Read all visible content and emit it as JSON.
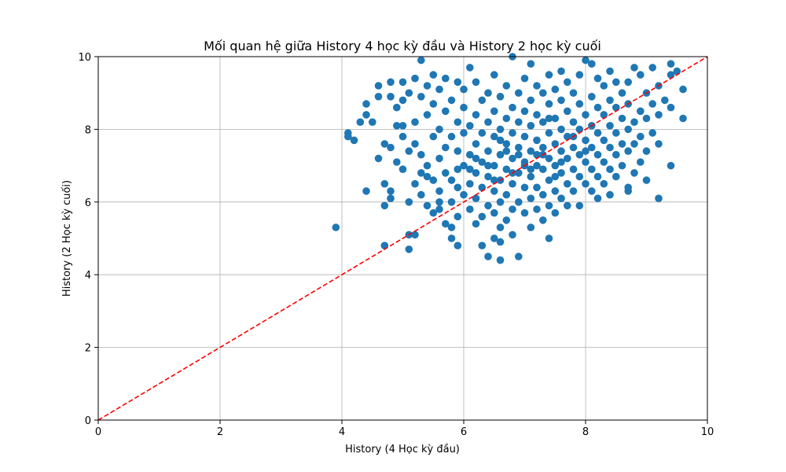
{
  "chart_data": {
    "type": "scatter",
    "title": "Mối quan hệ giữa History 4 học kỳ đầu và History 2 học kỳ cuối",
    "xlabel": "History (4 Học kỳ đầu)",
    "ylabel": "History (2 Học kỳ cuối)",
    "xlim": [
      0,
      10
    ],
    "ylim": [
      0,
      10
    ],
    "xticks": [
      0,
      2,
      4,
      6,
      8,
      10
    ],
    "yticks": [
      0,
      2,
      4,
      6,
      8,
      10
    ],
    "grid": true,
    "point_color": "#1f77b4",
    "reference_line": {
      "x": [
        0,
        10
      ],
      "y": [
        0,
        10
      ],
      "color": "#ff0000",
      "style": "dashed"
    },
    "series": [
      {
        "points": [
          [
            3.9,
            5.3
          ],
          [
            4.1,
            7.8
          ],
          [
            4.1,
            7.9
          ],
          [
            4.2,
            7.7
          ],
          [
            4.3,
            8.2
          ],
          [
            4.4,
            6.3
          ],
          [
            4.4,
            8.7
          ],
          [
            4.4,
            8.4
          ],
          [
            4.5,
            8.2
          ],
          [
            4.6,
            9.2
          ],
          [
            4.6,
            7.2
          ],
          [
            4.6,
            8.9
          ],
          [
            4.7,
            6.5
          ],
          [
            4.7,
            5.9
          ],
          [
            4.7,
            7.6
          ],
          [
            4.7,
            4.8
          ],
          [
            4.8,
            6.1
          ],
          [
            4.8,
            7.5
          ],
          [
            4.8,
            8.9
          ],
          [
            4.8,
            9.3
          ],
          [
            4.8,
            6.3
          ],
          [
            4.9,
            7.1
          ],
          [
            4.9,
            8.1
          ],
          [
            4.9,
            8.6
          ],
          [
            5.0,
            6.9
          ],
          [
            5.0,
            7.8
          ],
          [
            5.0,
            8.8
          ],
          [
            5.0,
            9.3
          ],
          [
            5.0,
            8.1
          ],
          [
            5.1,
            6.0
          ],
          [
            5.1,
            4.7
          ],
          [
            5.1,
            5.1
          ],
          [
            5.1,
            7.4
          ],
          [
            5.1,
            9.0
          ],
          [
            5.2,
            5.1
          ],
          [
            5.2,
            6.5
          ],
          [
            5.2,
            8.2
          ],
          [
            5.2,
            9.4
          ],
          [
            5.2,
            7.6
          ],
          [
            5.3,
            6.8
          ],
          [
            5.3,
            8.9
          ],
          [
            5.3,
            9.9
          ],
          [
            5.3,
            7.3
          ],
          [
            5.3,
            6.2
          ],
          [
            5.4,
            5.9
          ],
          [
            5.4,
            8.4
          ],
          [
            5.4,
            9.2
          ],
          [
            5.4,
            7.0
          ],
          [
            5.5,
            5.7
          ],
          [
            5.5,
            6.6
          ],
          [
            5.5,
            7.8
          ],
          [
            5.5,
            8.7
          ],
          [
            5.5,
            9.5
          ],
          [
            5.6,
            5.8
          ],
          [
            5.6,
            6.3
          ],
          [
            5.6,
            7.2
          ],
          [
            5.6,
            8.0
          ],
          [
            5.6,
            9.1
          ],
          [
            5.7,
            5.4
          ],
          [
            5.7,
            6.8
          ],
          [
            5.7,
            7.5
          ],
          [
            5.7,
            8.5
          ],
          [
            5.7,
            9.4
          ],
          [
            5.8,
            5.0
          ],
          [
            5.8,
            5.3
          ],
          [
            5.8,
            6.0
          ],
          [
            5.8,
            6.6
          ],
          [
            5.8,
            7.8
          ],
          [
            5.8,
            8.8
          ],
          [
            5.9,
            4.8
          ],
          [
            5.9,
            5.6
          ],
          [
            5.9,
            6.9
          ],
          [
            5.9,
            7.4
          ],
          [
            5.9,
            8.2
          ],
          [
            5.9,
            9.3
          ],
          [
            6.0,
            6.2
          ],
          [
            6.0,
            7.0
          ],
          [
            6.0,
            7.9
          ],
          [
            6.0,
            8.6
          ],
          [
            6.0,
            9.1
          ],
          [
            6.1,
            5.8
          ],
          [
            6.1,
            6.5
          ],
          [
            6.1,
            7.3
          ],
          [
            6.1,
            8.1
          ],
          [
            6.1,
            9.7
          ],
          [
            6.2,
            5.4
          ],
          [
            6.2,
            6.1
          ],
          [
            6.2,
            6.8
          ],
          [
            6.2,
            7.6
          ],
          [
            6.2,
            8.4
          ],
          [
            6.2,
            9.3
          ],
          [
            6.3,
            4.8
          ],
          [
            6.3,
            5.6
          ],
          [
            6.3,
            6.4
          ],
          [
            6.3,
            7.1
          ],
          [
            6.3,
            7.9
          ],
          [
            6.3,
            8.8
          ],
          [
            6.4,
            4.5
          ],
          [
            6.4,
            5.9
          ],
          [
            6.4,
            6.7
          ],
          [
            6.4,
            7.4
          ],
          [
            6.4,
            8.2
          ],
          [
            6.4,
            9.0
          ],
          [
            6.5,
            5.0
          ],
          [
            6.5,
            5.7
          ],
          [
            6.5,
            6.3
          ],
          [
            6.5,
            7.0
          ],
          [
            6.5,
            7.8
          ],
          [
            6.5,
            8.5
          ],
          [
            6.5,
            9.5
          ],
          [
            6.6,
            4.4
          ],
          [
            6.6,
            4.9
          ],
          [
            6.6,
            5.3
          ],
          [
            6.6,
            6.0
          ],
          [
            6.6,
            6.6
          ],
          [
            6.6,
            7.3
          ],
          [
            6.6,
            8.0
          ],
          [
            6.6,
            8.9
          ],
          [
            6.7,
            5.5
          ],
          [
            6.7,
            6.2
          ],
          [
            6.7,
            6.9
          ],
          [
            6.7,
            7.6
          ],
          [
            6.7,
            8.3
          ],
          [
            6.7,
            9.2
          ],
          [
            6.8,
            5.1
          ],
          [
            6.8,
            5.8
          ],
          [
            6.8,
            6.5
          ],
          [
            6.8,
            7.2
          ],
          [
            6.8,
            7.9
          ],
          [
            6.8,
            8.6
          ],
          [
            6.8,
            10.0
          ],
          [
            6.9,
            4.5
          ],
          [
            6.9,
            6.0
          ],
          [
            6.9,
            6.8
          ],
          [
            6.9,
            7.5
          ],
          [
            6.9,
            8.2
          ],
          [
            6.9,
            9.0
          ],
          [
            7.0,
            5.7
          ],
          [
            7.0,
            6.4
          ],
          [
            7.0,
            7.1
          ],
          [
            7.0,
            7.8
          ],
          [
            7.0,
            8.5
          ],
          [
            7.0,
            9.4
          ],
          [
            7.1,
            5.3
          ],
          [
            7.1,
            6.1
          ],
          [
            7.1,
            6.7
          ],
          [
            7.1,
            7.4
          ],
          [
            7.1,
            8.1
          ],
          [
            7.1,
            8.8
          ],
          [
            7.1,
            9.8
          ],
          [
            7.2,
            5.8
          ],
          [
            7.2,
            6.4
          ],
          [
            7.2,
            7.0
          ],
          [
            7.2,
            7.7
          ],
          [
            7.2,
            8.4
          ],
          [
            7.2,
            9.2
          ],
          [
            7.3,
            5.5
          ],
          [
            7.3,
            6.2
          ],
          [
            7.3,
            6.9
          ],
          [
            7.3,
            7.5
          ],
          [
            7.3,
            8.2
          ],
          [
            7.3,
            9.0
          ],
          [
            7.4,
            5.0
          ],
          [
            7.4,
            5.9
          ],
          [
            7.4,
            6.6
          ],
          [
            7.4,
            7.2
          ],
          [
            7.4,
            7.9
          ],
          [
            7.4,
            8.7
          ],
          [
            7.4,
            9.5
          ],
          [
            7.5,
            5.7
          ],
          [
            7.5,
            6.3
          ],
          [
            7.5,
            7.0
          ],
          [
            7.5,
            7.6
          ],
          [
            7.5,
            8.3
          ],
          [
            7.5,
            9.1
          ],
          [
            7.6,
            6.1
          ],
          [
            7.6,
            6.8
          ],
          [
            7.6,
            7.4
          ],
          [
            7.6,
            8.0
          ],
          [
            7.6,
            8.8
          ],
          [
            7.6,
            9.6
          ],
          [
            7.7,
            5.9
          ],
          [
            7.7,
            6.5
          ],
          [
            7.7,
            7.2
          ],
          [
            7.7,
            7.8
          ],
          [
            7.7,
            8.5
          ],
          [
            7.7,
            9.3
          ],
          [
            7.8,
            6.3
          ],
          [
            7.8,
            6.9
          ],
          [
            7.8,
            7.5
          ],
          [
            7.8,
            8.2
          ],
          [
            7.8,
            9.0
          ],
          [
            7.9,
            5.9
          ],
          [
            7.9,
            6.7
          ],
          [
            7.9,
            7.3
          ],
          [
            7.9,
            8.0
          ],
          [
            7.9,
            8.7
          ],
          [
            7.9,
            9.5
          ],
          [
            8.0,
            6.5
          ],
          [
            8.0,
            7.1
          ],
          [
            8.0,
            7.7
          ],
          [
            8.0,
            8.4
          ],
          [
            8.0,
            9.9
          ],
          [
            8.1,
            6.3
          ],
          [
            8.1,
            6.9
          ],
          [
            8.1,
            7.5
          ],
          [
            8.1,
            8.1
          ],
          [
            8.1,
            8.9
          ],
          [
            8.1,
            9.8
          ],
          [
            8.2,
            6.1
          ],
          [
            8.2,
            6.7
          ],
          [
            8.2,
            7.3
          ],
          [
            8.2,
            7.9
          ],
          [
            8.2,
            8.6
          ],
          [
            8.2,
            9.4
          ],
          [
            8.3,
            6.5
          ],
          [
            8.3,
            7.1
          ],
          [
            8.3,
            7.7
          ],
          [
            8.3,
            8.4
          ],
          [
            8.3,
            9.2
          ],
          [
            8.4,
            6.2
          ],
          [
            8.4,
            6.9
          ],
          [
            8.4,
            7.5
          ],
          [
            8.4,
            8.1
          ],
          [
            8.4,
            8.8
          ],
          [
            8.4,
            9.6
          ],
          [
            8.5,
            6.7
          ],
          [
            8.5,
            7.3
          ],
          [
            8.5,
            7.9
          ],
          [
            8.5,
            8.6
          ],
          [
            8.5,
            9.3
          ],
          [
            8.6,
            7.0
          ],
          [
            8.6,
            7.6
          ],
          [
            8.6,
            8.3
          ],
          [
            8.6,
            9.0
          ],
          [
            8.7,
            6.3
          ],
          [
            8.7,
            6.4
          ],
          [
            8.7,
            7.4
          ],
          [
            8.7,
            8.0
          ],
          [
            8.7,
            8.7
          ],
          [
            8.7,
            9.3
          ],
          [
            8.8,
            6.8
          ],
          [
            8.8,
            7.6
          ],
          [
            8.8,
            8.2
          ],
          [
            8.8,
            9.7
          ],
          [
            8.9,
            7.1
          ],
          [
            8.9,
            7.8
          ],
          [
            8.9,
            8.5
          ],
          [
            8.9,
            9.5
          ],
          [
            9.0,
            6.6
          ],
          [
            9.0,
            7.4
          ],
          [
            9.0,
            8.3
          ],
          [
            9.0,
            9.0
          ],
          [
            9.1,
            7.9
          ],
          [
            9.1,
            8.7
          ],
          [
            9.1,
            9.7
          ],
          [
            9.2,
            6.1
          ],
          [
            9.2,
            7.6
          ],
          [
            9.2,
            8.4
          ],
          [
            9.2,
            9.2
          ],
          [
            9.3,
            8.8
          ],
          [
            9.4,
            7.0
          ],
          [
            9.4,
            8.6
          ],
          [
            9.4,
            9.5
          ],
          [
            9.4,
            9.8
          ],
          [
            9.5,
            9.6
          ],
          [
            9.6,
            8.3
          ],
          [
            9.6,
            9.1
          ],
          [
            5.6,
            6.0
          ],
          [
            6.1,
            6.9
          ],
          [
            6.6,
            7.7
          ],
          [
            7.1,
            6.9
          ],
          [
            7.6,
            7.1
          ],
          [
            6.9,
            7.3
          ],
          [
            6.4,
            7.0
          ],
          [
            7.3,
            7.3
          ],
          [
            6.8,
            6.8
          ],
          [
            7.0,
            7.0
          ],
          [
            7.2,
            7.3
          ],
          [
            6.7,
            7.4
          ],
          [
            7.5,
            6.7
          ],
          [
            6.2,
            7.2
          ],
          [
            7.8,
            7.8
          ],
          [
            5.9,
            6.4
          ],
          [
            6.5,
            6.6
          ],
          [
            7.4,
            8.3
          ],
          [
            5.4,
            6.7
          ],
          [
            8.0,
            7.4
          ]
        ]
      }
    ]
  }
}
